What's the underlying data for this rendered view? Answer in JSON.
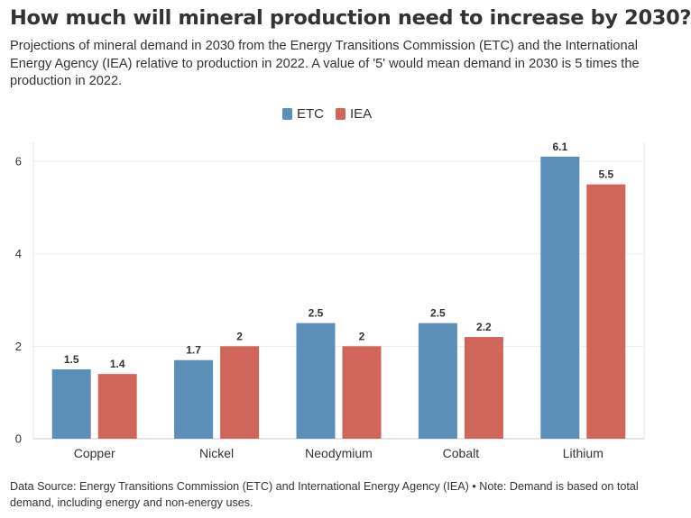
{
  "title": "How much will mineral production need to increase by 2030?",
  "subtitle": "Projections of mineral demand in 2030 from the Energy Transitions Commission (ETC) and the International Energy Agency (IEA) relative to production in 2022. A value of '5' would mean demand in 2030 is 5 times the production in 2022.",
  "source": "Data Source: Energy Transitions Commission (ETC) and International Energy Agency (IEA) • Note: Demand is based on total demand, including energy and non-energy uses.",
  "legend": [
    {
      "label": "ETC",
      "color": "#5b8fba"
    },
    {
      "label": "IEA",
      "color": "#d0655a"
    }
  ],
  "chart_data": {
    "type": "bar",
    "categories": [
      "Copper",
      "Nickel",
      "Neodymium",
      "Cobalt",
      "Lithium"
    ],
    "series": [
      {
        "name": "ETC",
        "color": "#5b8fba",
        "values": [
          1.5,
          1.7,
          2.5,
          2.5,
          6.1
        ],
        "labels": [
          "1.5",
          "1.7",
          "2.5",
          "2.5",
          "6.1"
        ]
      },
      {
        "name": "IEA",
        "color": "#d0655a",
        "values": [
          1.4,
          2,
          2,
          2.2,
          5.5
        ],
        "labels": [
          "1.4",
          "2",
          "2",
          "2.2",
          "5.5"
        ]
      }
    ],
    "yticks": [
      0,
      2,
      4,
      6
    ],
    "ylim": [
      0,
      6.4
    ],
    "grid": true,
    "legend_position": "top-center"
  }
}
